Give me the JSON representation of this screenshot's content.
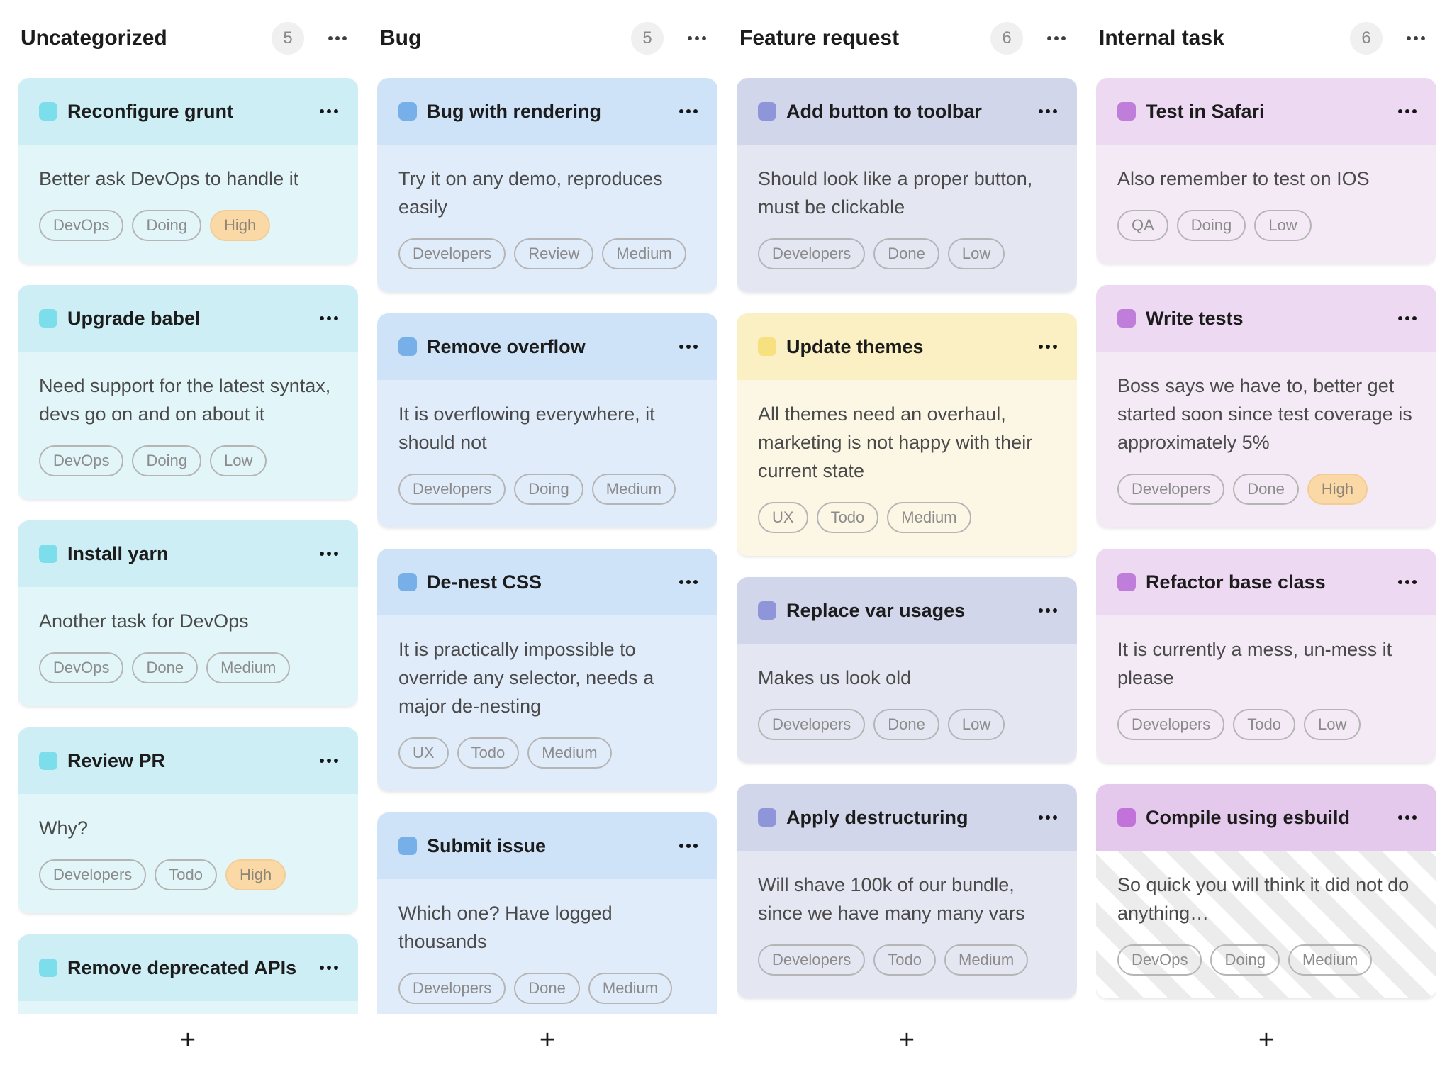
{
  "board": {
    "add_card_label": "+",
    "columns": [
      {
        "name": "Uncategorized",
        "count": "5",
        "theme": "cyan",
        "cards": [
          {
            "title": "Reconfigure grunt",
            "desc": "Better ask DevOps to handle it",
            "tags": [
              {
                "label": "DevOps",
                "variant": "outline"
              },
              {
                "label": "Doing",
                "variant": "outline"
              },
              {
                "label": "High",
                "variant": "high"
              }
            ]
          },
          {
            "title": "Upgrade babel",
            "desc": "Need support for the latest syntax, devs go on and on about it",
            "tags": [
              {
                "label": "DevOps",
                "variant": "outline"
              },
              {
                "label": "Doing",
                "variant": "outline"
              },
              {
                "label": "Low",
                "variant": "outline"
              }
            ]
          },
          {
            "title": "Install yarn",
            "desc": "Another task for DevOps",
            "tags": [
              {
                "label": "DevOps",
                "variant": "outline"
              },
              {
                "label": "Done",
                "variant": "outline"
              },
              {
                "label": "Medium",
                "variant": "outline"
              }
            ]
          },
          {
            "title": "Review PR",
            "desc": "Why?",
            "tags": [
              {
                "label": "Developers",
                "variant": "outline"
              },
              {
                "label": "Todo",
                "variant": "outline"
              },
              {
                "label": "High",
                "variant": "high"
              }
            ]
          },
          {
            "title": "Remove deprecated APIs",
            "desc": "",
            "tags": []
          }
        ]
      },
      {
        "name": "Bug",
        "count": "5",
        "theme": "blue",
        "cards": [
          {
            "title": "Bug with rendering",
            "desc": "Try it on any demo, reproduces easily",
            "tags": [
              {
                "label": "Developers",
                "variant": "outline"
              },
              {
                "label": "Review",
                "variant": "outline"
              },
              {
                "label": "Medium",
                "variant": "outline"
              }
            ]
          },
          {
            "title": "Remove overflow",
            "desc": "It is overflowing everywhere, it should not",
            "tags": [
              {
                "label": "Developers",
                "variant": "outline"
              },
              {
                "label": "Doing",
                "variant": "outline"
              },
              {
                "label": "Medium",
                "variant": "outline"
              }
            ]
          },
          {
            "title": "De-nest CSS",
            "desc": "It is practically impossible to override any selector, needs a major de-nesting",
            "tags": [
              {
                "label": "UX",
                "variant": "outline"
              },
              {
                "label": "Todo",
                "variant": "outline"
              },
              {
                "label": "Medium",
                "variant": "outline"
              }
            ]
          },
          {
            "title": "Submit issue",
            "desc": "Which one? Have logged thousands",
            "tags": [
              {
                "label": "Developers",
                "variant": "outline"
              },
              {
                "label": "Done",
                "variant": "outline"
              },
              {
                "label": "Medium",
                "variant": "outline"
              }
            ]
          }
        ]
      },
      {
        "name": "Feature request",
        "count": "6",
        "theme": "indigo",
        "cards": [
          {
            "title": "Add button to toolbar",
            "desc": "Should look like a proper button, must be clickable",
            "tags": [
              {
                "label": "Developers",
                "variant": "outline"
              },
              {
                "label": "Done",
                "variant": "outline"
              },
              {
                "label": "Low",
                "variant": "outline"
              }
            ]
          },
          {
            "title": "Update themes",
            "theme": "yellow",
            "desc": "All themes need an overhaul, marketing is not happy with their current state",
            "tags": [
              {
                "label": "UX",
                "variant": "outline"
              },
              {
                "label": "Todo",
                "variant": "outline"
              },
              {
                "label": "Medium",
                "variant": "outline"
              }
            ]
          },
          {
            "title": "Replace var usages",
            "desc": "Makes us look old",
            "tags": [
              {
                "label": "Developers",
                "variant": "outline"
              },
              {
                "label": "Done",
                "variant": "outline"
              },
              {
                "label": "Low",
                "variant": "outline"
              }
            ]
          },
          {
            "title": "Apply destructuring",
            "desc": "Will shave 100k of our bundle, since we have many many vars",
            "tags": [
              {
                "label": "Developers",
                "variant": "outline"
              },
              {
                "label": "Todo",
                "variant": "outline"
              },
              {
                "label": "Medium",
                "variant": "outline"
              }
            ]
          }
        ]
      },
      {
        "name": "Internal task",
        "count": "6",
        "theme": "purple",
        "cards": [
          {
            "title": "Test in Safari",
            "desc": "Also remember to test on IOS",
            "tags": [
              {
                "label": "QA",
                "variant": "outline"
              },
              {
                "label": "Doing",
                "variant": "outline"
              },
              {
                "label": "Low",
                "variant": "outline"
              }
            ]
          },
          {
            "title": "Write tests",
            "desc": "Boss says we have to, better get started soon since test coverage is approximately 5%",
            "tags": [
              {
                "label": "Developers",
                "variant": "outline"
              },
              {
                "label": "Done",
                "variant": "outline"
              },
              {
                "label": "High",
                "variant": "high"
              }
            ]
          },
          {
            "title": "Refactor base class",
            "desc": "It is currently a mess, un-mess it please",
            "tags": [
              {
                "label": "Developers",
                "variant": "outline"
              },
              {
                "label": "Todo",
                "variant": "outline"
              },
              {
                "label": "Low",
                "variant": "outline"
              }
            ]
          },
          {
            "title": "Compile using esbuild",
            "theme": "orchid",
            "striped": true,
            "desc": "So quick you will think it did not do anything…",
            "tags": [
              {
                "label": "DevOps",
                "variant": "outline"
              },
              {
                "label": "Doing",
                "variant": "outline"
              },
              {
                "label": "Medium",
                "variant": "outline"
              }
            ]
          }
        ]
      }
    ]
  },
  "icons": {
    "column_menu": "ellipsis",
    "card_menu": "ellipsis",
    "add_card": "plus"
  },
  "palette": {
    "page_bg": "#ffffff",
    "title_text": "#1c1c1c",
    "desc_text": "#4a4a4a",
    "badge_bg": "#f0f0f0",
    "badge_text": "#8a8a8a",
    "tag_border": "#b5b5b5",
    "tag_text": "#8b8b8b",
    "tag_high_bg": "#fbd9a6",
    "tag_high_border": "#f2cd96",
    "tag_high_text": "#8d8678",
    "stripe_color": "#ececec",
    "themes": {
      "cyan": {
        "header": "#cdeef5",
        "body": "#e2f6f9",
        "square": "#7cdeea"
      },
      "blue": {
        "header": "#cfe3f8",
        "body": "#e1ecfa",
        "square": "#77b0e8"
      },
      "indigo": {
        "header": "#d2d6eb",
        "body": "#e4e6f2",
        "square": "#8e96d9"
      },
      "yellow": {
        "header": "#faf0c4",
        "body": "#fcf7e4",
        "square": "#f6e17e"
      },
      "purple": {
        "header": "#edd9f1",
        "body": "#f4eaf6",
        "square": "#c07edb"
      },
      "orchid": {
        "header": "#e5c9ed",
        "body": "#ffffff",
        "square": "#c273da"
      }
    }
  }
}
